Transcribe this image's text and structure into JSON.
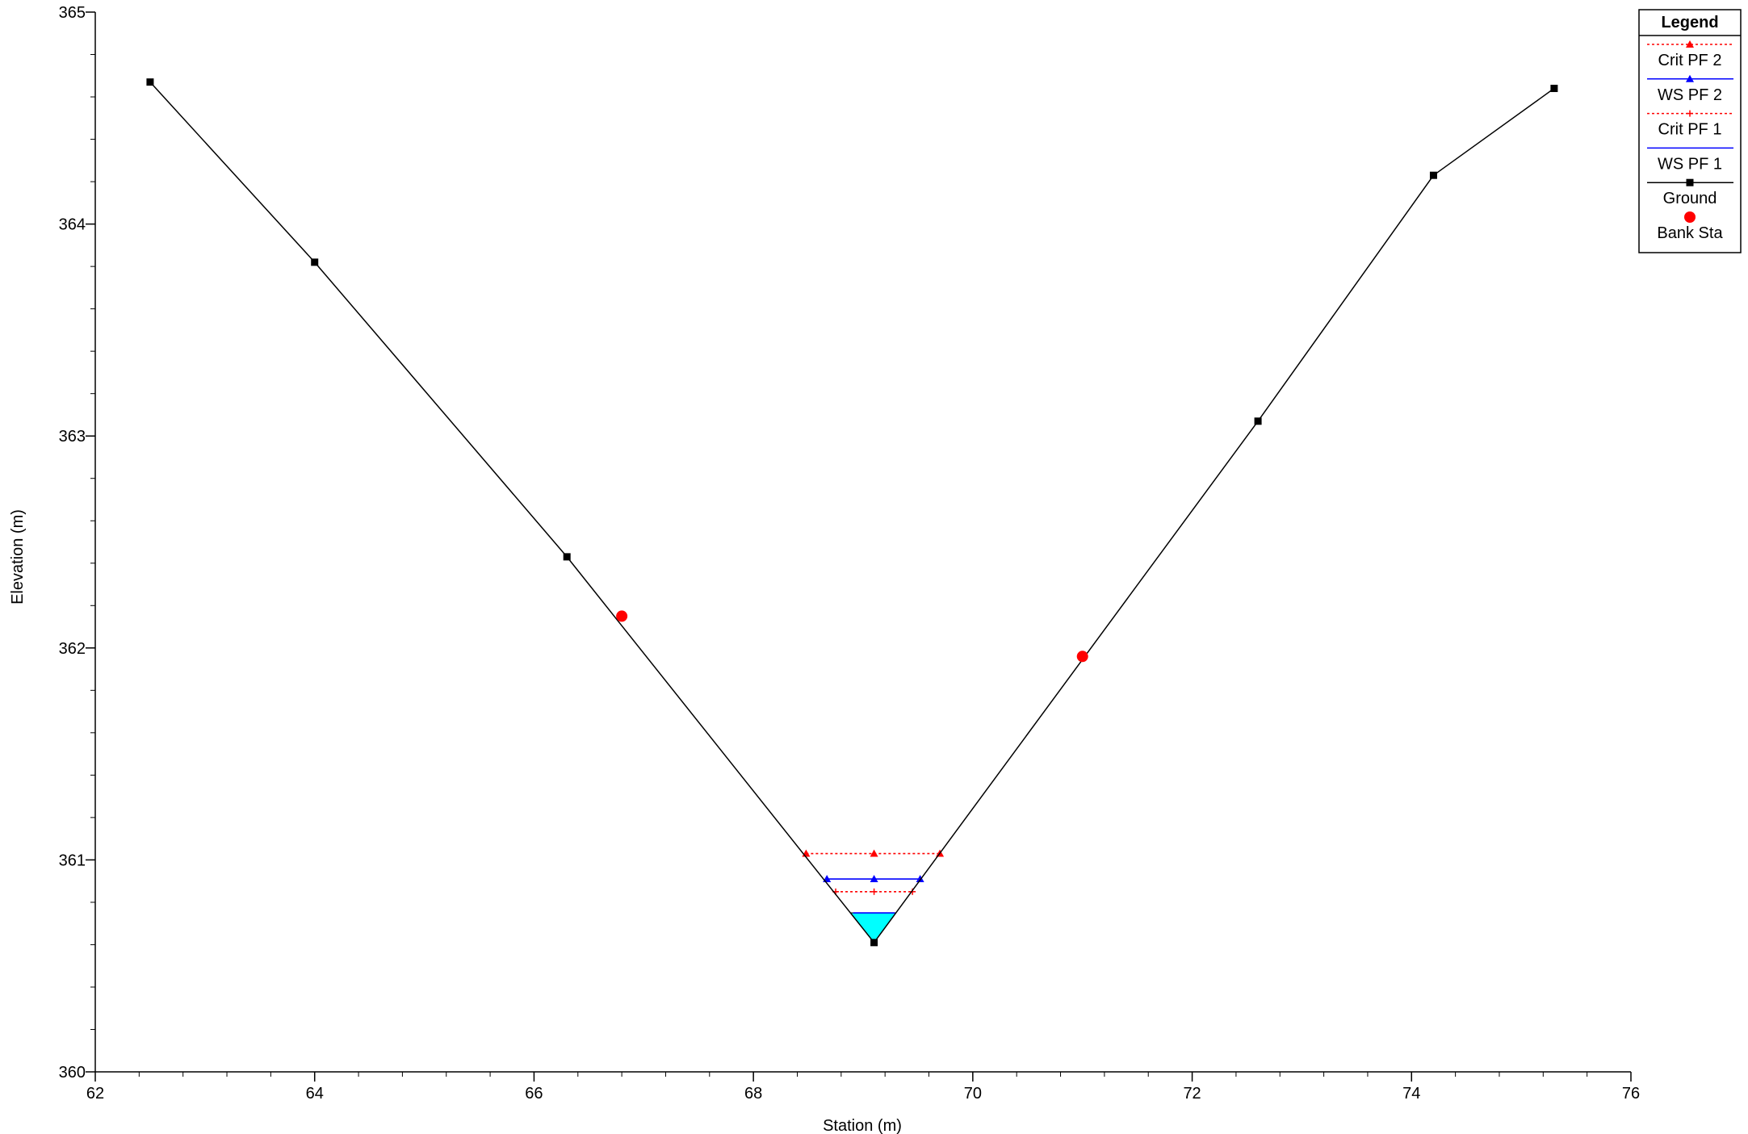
{
  "chart_data": {
    "type": "line",
    "xlabel": "Station (m)",
    "ylabel": "Elevation (m)",
    "xlim": [
      62,
      76
    ],
    "ylim": [
      360,
      365
    ],
    "x_ticks": [
      62,
      64,
      66,
      68,
      70,
      72,
      74,
      76
    ],
    "y_ticks": [
      360,
      361,
      362,
      363,
      364,
      365
    ],
    "x_minor_step": 0.4,
    "y_minor_step": 0.2,
    "grid": false,
    "legend_position": "top-right",
    "legend_title": "Legend",
    "ground": {
      "name": "Ground",
      "color": "#000000",
      "x": [
        62.5,
        64.0,
        66.3,
        69.1,
        72.6,
        74.2,
        75.3
      ],
      "y": [
        364.67,
        363.82,
        362.43,
        360.61,
        363.07,
        364.23,
        364.64
      ]
    },
    "bank_stations": {
      "name": "Bank Sta",
      "color": "#ff0000",
      "points": [
        {
          "x": 66.8,
          "y": 362.15
        },
        {
          "x": 71.0,
          "y": 361.96
        }
      ]
    },
    "water_fill": {
      "color": "#00ffff",
      "elevation": 360.75
    },
    "water_surfaces": [
      {
        "name": "Crit PF 2",
        "color": "#ff0000",
        "style": "dotted",
        "marker": "triangle",
        "elevation": 361.03,
        "x_left": 68.48,
        "x_right": 69.7
      },
      {
        "name": "WS PF 2",
        "color": "#0000ff",
        "style": "solid",
        "marker": "triangle",
        "elevation": 360.91,
        "x_left": 68.67,
        "x_right": 69.52
      },
      {
        "name": "Crit PF 1",
        "color": "#ff0000",
        "style": "dotted",
        "marker": "plus",
        "elevation": 360.85,
        "x_left": 68.75,
        "x_right": 69.45
      },
      {
        "name": "WS PF 1",
        "color": "#0000ff",
        "style": "solid",
        "marker": "none",
        "elevation": 360.75,
        "x_left": 68.91,
        "x_right": 69.29
      }
    ],
    "legend_entries": [
      {
        "name": "Crit PF 2",
        "color": "#ff0000",
        "style": "dotted",
        "marker": "triangle"
      },
      {
        "name": "WS PF 2",
        "color": "#0000ff",
        "style": "solid",
        "marker": "triangle"
      },
      {
        "name": "Crit PF 1",
        "color": "#ff0000",
        "style": "dotted",
        "marker": "plus"
      },
      {
        "name": "WS PF 1",
        "color": "#0000ff",
        "style": "solid",
        "marker": "none"
      },
      {
        "name": "Ground",
        "color": "#000000",
        "style": "solid",
        "marker": "square"
      },
      {
        "name": "Bank Sta",
        "color": "#ff0000",
        "style": "none",
        "marker": "circle"
      }
    ]
  }
}
